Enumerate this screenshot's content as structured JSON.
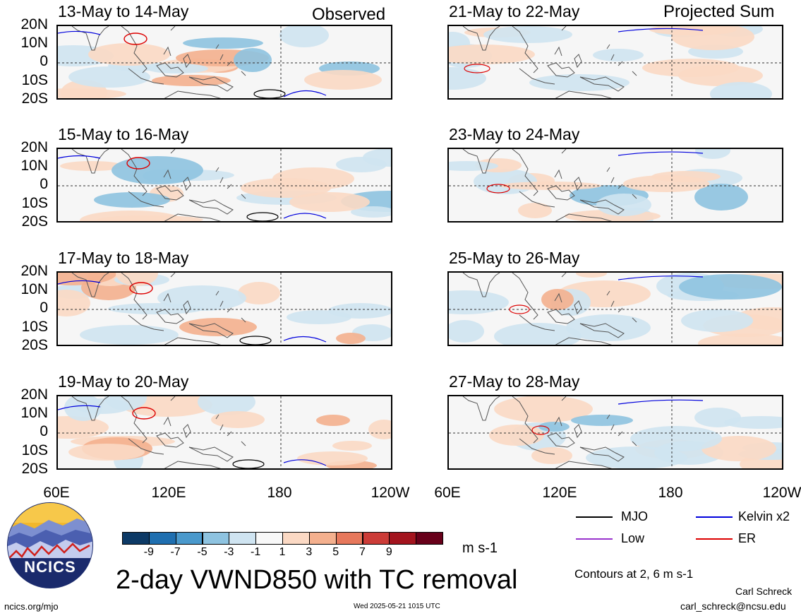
{
  "header": {
    "observed_label": "Observed",
    "projected_label": "Projected Sum"
  },
  "left_panels": [
    {
      "title": "13-May to 14-May"
    },
    {
      "title": "15-May to 16-May"
    },
    {
      "title": "17-May to 18-May"
    },
    {
      "title": "19-May to 20-May"
    }
  ],
  "right_panels": [
    {
      "title": "21-May to 22-May"
    },
    {
      "title": "23-May to 24-May"
    },
    {
      "title": "25-May to 26-May"
    },
    {
      "title": "27-May to 28-May"
    }
  ],
  "lat_labels": [
    "20N",
    "10N",
    "0",
    "10S",
    "20S"
  ],
  "lon_labels": [
    "60E",
    "120E",
    "180",
    "120W"
  ],
  "colorbar": {
    "colors": [
      "#0d3a66",
      "#1f6fb0",
      "#4a99cc",
      "#8ec3e0",
      "#cfe4f1",
      "#f8f8f8",
      "#fbd9c4",
      "#f4b08e",
      "#e7785c",
      "#cc3c38",
      "#a3141e",
      "#68001a"
    ],
    "labels": [
      "-9",
      "-7",
      "-5",
      "-3",
      "-1",
      "1",
      "3",
      "5",
      "7",
      "9"
    ],
    "units": "m s-1"
  },
  "legend": {
    "items": [
      {
        "label": "MJO",
        "color": "#000000"
      },
      {
        "label": "Kelvin x2",
        "color": "#0000dd"
      },
      {
        "label": "Low",
        "color": "#9933cc"
      },
      {
        "label": "ER",
        "color": "#dd0000"
      }
    ],
    "contours_note": "Contours at 2, 6 m s-1"
  },
  "main_title": "2-day VWND850 with TC removal",
  "logo": {
    "text": "NCICS"
  },
  "footer": {
    "url": "ncics.org/mjo",
    "timestamp": "Wed 2025-05-21 1015 UTC",
    "author": "Carl Schreck",
    "email": "carl_schreck@ncsu.edu"
  }
}
